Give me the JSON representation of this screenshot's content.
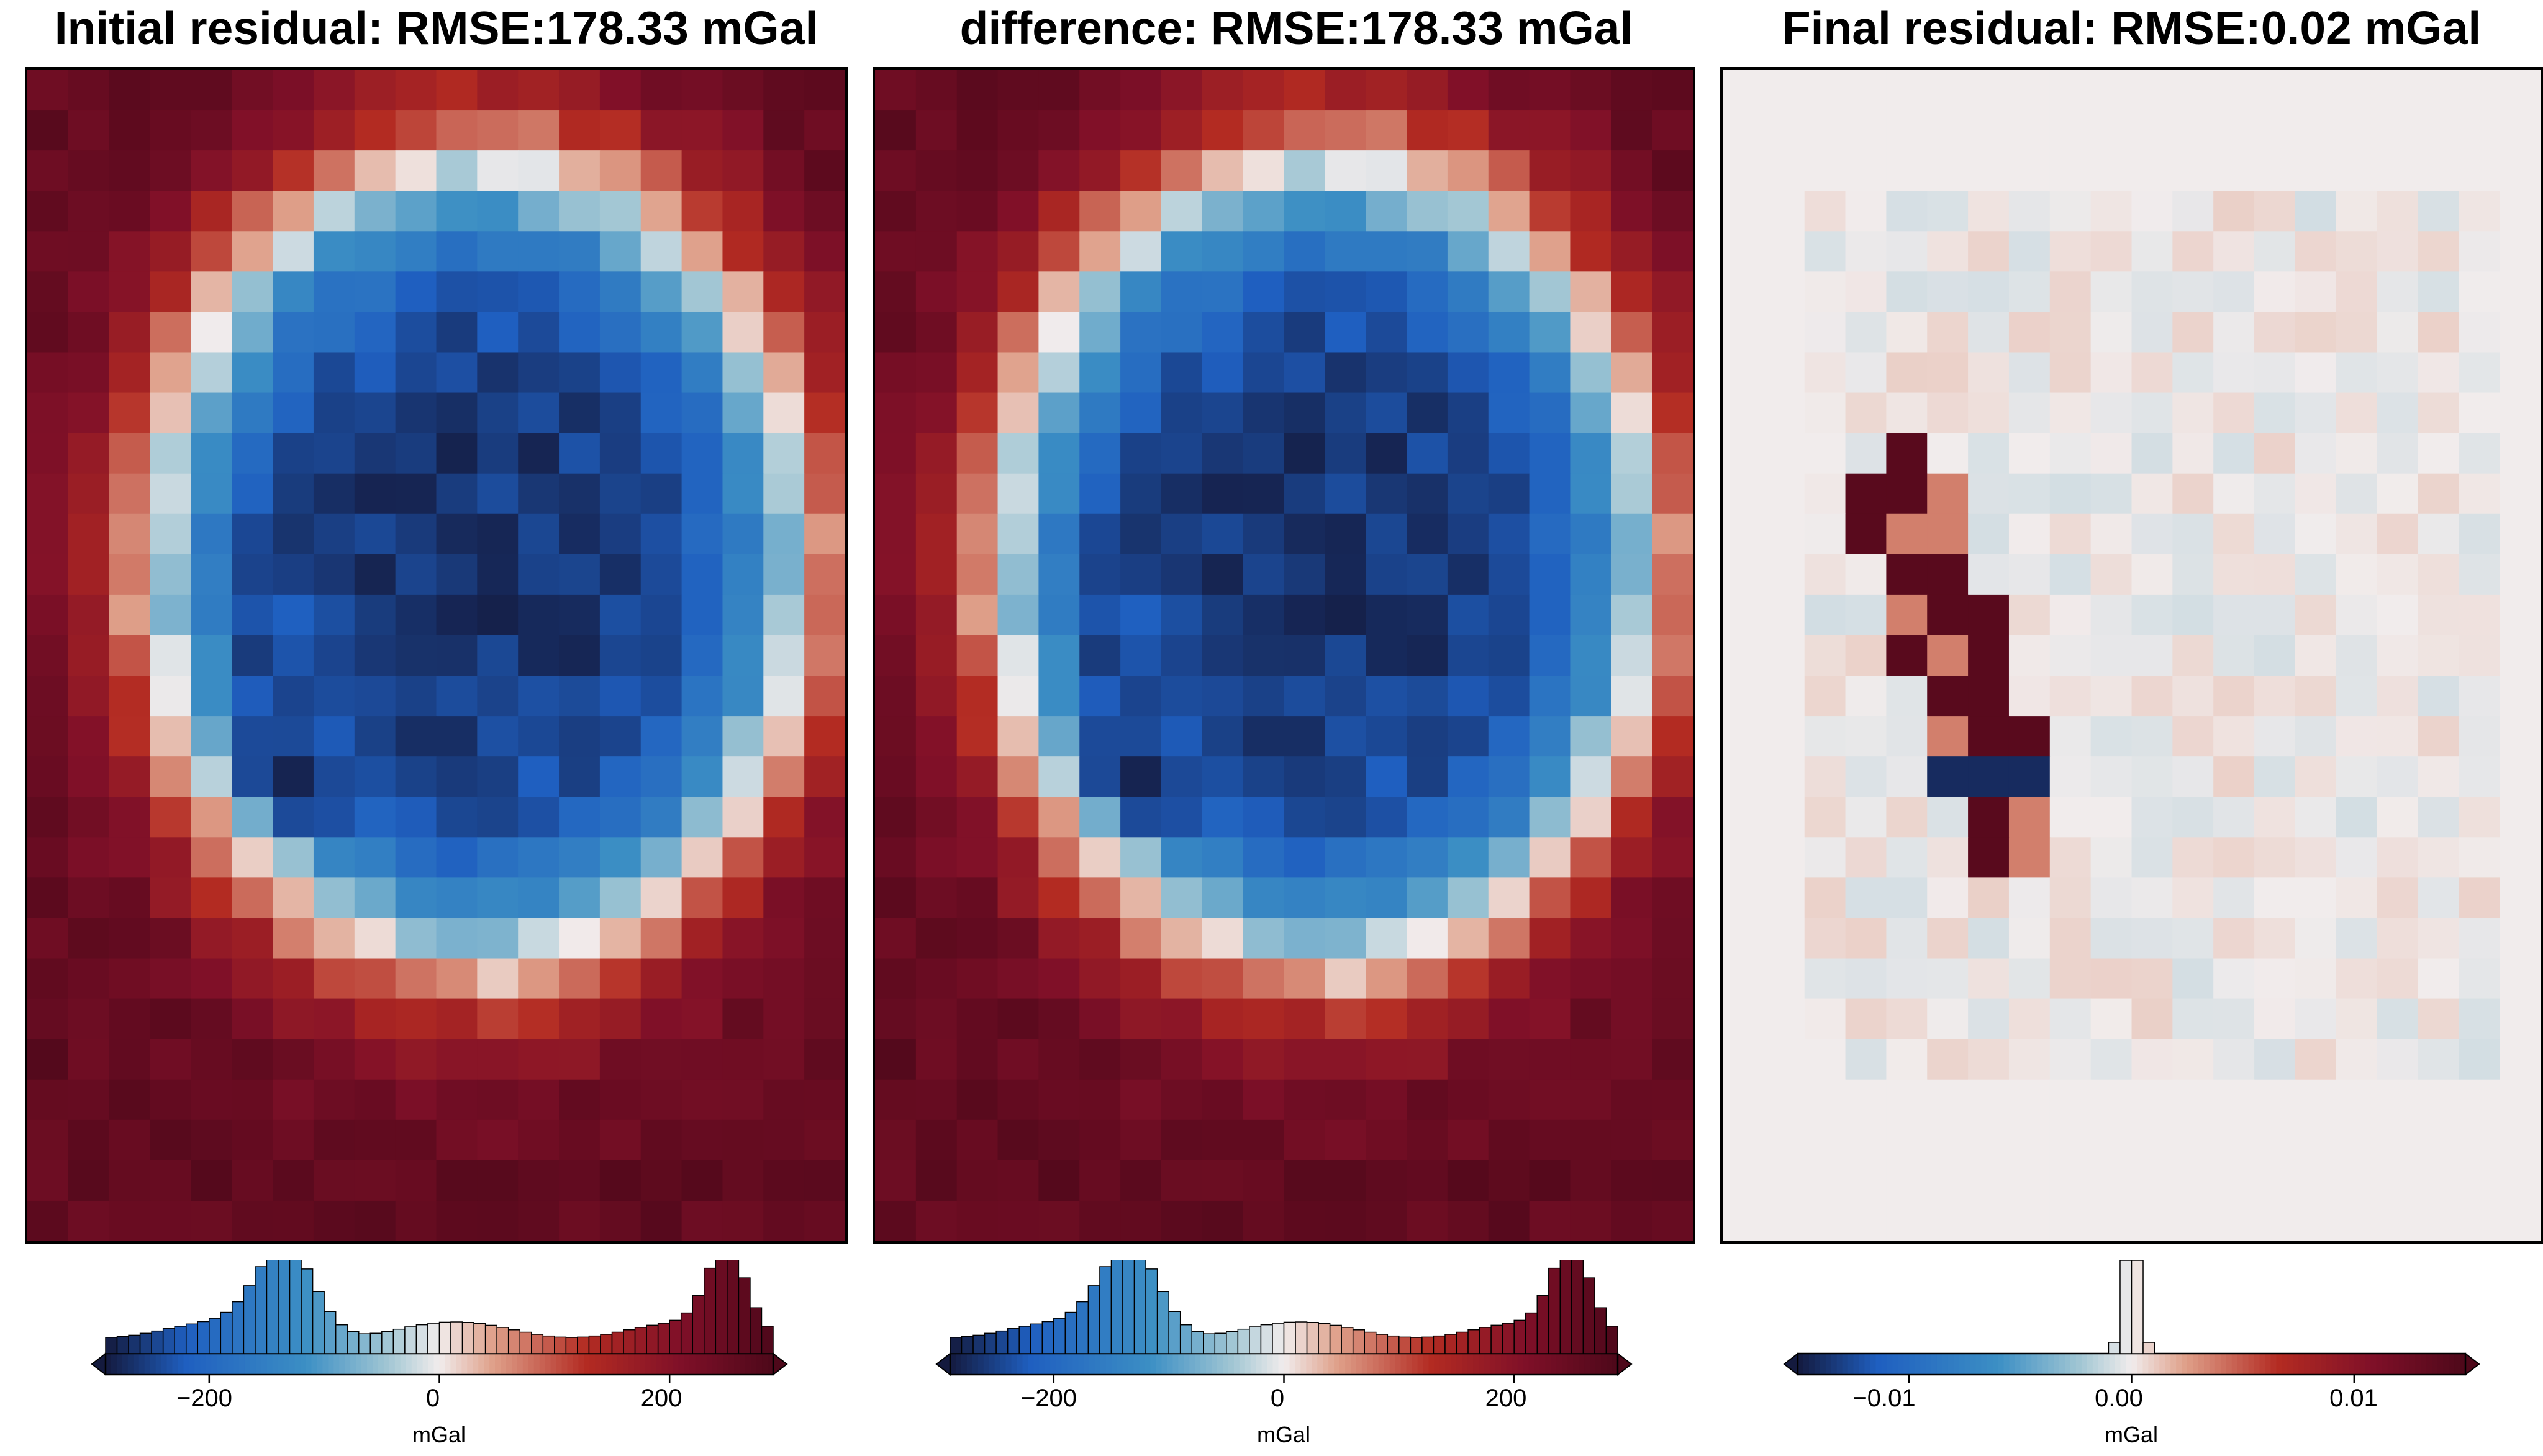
{
  "chart_data": [
    {
      "type": "heatmap",
      "title": "Initial residual: RMSE:178.33 mGal",
      "rmse": "178.33 mGal",
      "colormap": "balance (diverging: navy-blue-white-red-maroon)",
      "grid_size": [
        20,
        29
      ],
      "pattern": "sign-source",
      "colorbar": {
        "label": "mGal",
        "range": [
          -290,
          290
        ],
        "ticks": [
          "−200",
          "0",
          "200"
        ],
        "tick_values": [
          -200,
          0,
          200
        ],
        "extend": "both",
        "histogram": true
      }
    },
    {
      "type": "heatmap",
      "title": "difference: RMSE:178.33 mGal",
      "rmse": "178.33 mGal",
      "colormap": "balance (diverging: navy-blue-white-red-maroon)",
      "grid_size": [
        20,
        29
      ],
      "pattern": "sign-source",
      "colorbar": {
        "label": "mGal",
        "range": [
          -290,
          290
        ],
        "ticks": [
          "−200",
          "0",
          "200"
        ],
        "tick_values": [
          -200,
          0,
          200
        ],
        "extend": "both",
        "histogram": true
      }
    },
    {
      "type": "heatmap",
      "title": "Final residual: RMSE:0.02 mGal",
      "rmse": "0.02 mGal",
      "colormap": "balance (diverging: navy-blue-white-red-maroon)",
      "grid_size": [
        20,
        29
      ],
      "pattern": "residual-sparse",
      "colorbar": {
        "label": "mGal",
        "range": [
          -0.015,
          0.015
        ],
        "ticks": [
          "−0.01",
          "0.00",
          "0.01"
        ],
        "tick_values": [
          -0.01,
          0.0,
          0.01
        ],
        "extend": "both",
        "histogram": true
      }
    }
  ],
  "colors": {
    "navy": "#141a3e",
    "blue": "#1f5fc0",
    "mid_blue": "#3c8fc4",
    "pale_blue": "#9fc5d3",
    "white": "#f1ecec",
    "salmon": "#dfa08a",
    "red": "#b32b22",
    "maroon": "#5c0a1e"
  }
}
